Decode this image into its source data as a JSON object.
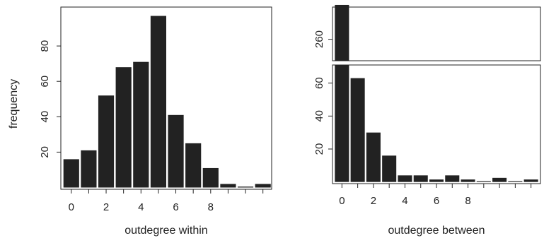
{
  "chart_data": [
    {
      "type": "bar",
      "x": [
        0,
        1,
        2,
        3,
        4,
        5,
        6,
        7,
        8,
        9,
        10,
        11
      ],
      "values": [
        16,
        21,
        52,
        68,
        71,
        97,
        41,
        25,
        11,
        2,
        0.5,
        2
      ],
      "xlabel": "outdegree within",
      "ylabel": "frequency",
      "xlim": [
        -0.6,
        11.5
      ],
      "ylim": [
        -1,
        102
      ],
      "x_tick_labels": [
        "0",
        "2",
        "4",
        "6",
        "8"
      ],
      "x_tick_values": [
        0,
        2,
        4,
        6,
        8
      ],
      "x_minor_ticks": [
        0,
        1,
        2,
        3,
        4,
        5,
        6,
        7,
        8,
        9,
        10,
        11
      ],
      "y_ticks": [
        20,
        40,
        60,
        80
      ],
      "bar_color": "#222222"
    },
    {
      "type": "bar",
      "broken_axis": true,
      "x": [
        0,
        1,
        2,
        3,
        4,
        5,
        6,
        7,
        8,
        9,
        10,
        11,
        12
      ],
      "values": [
        276,
        63,
        30,
        16,
        4,
        4,
        1.5,
        4,
        1.5,
        0.5,
        2.5,
        0.5,
        1.5
      ],
      "xlabel": "outdegree between",
      "xlim": [
        -0.6,
        12.6
      ],
      "upper_ylim": [
        250,
        275
      ],
      "lower_ylim": [
        -1,
        71
      ],
      "upper_y_ticks": [
        260
      ],
      "lower_y_ticks": [
        20,
        40,
        60
      ],
      "x_tick_labels": [
        "0",
        "2",
        "4",
        "6",
        "8"
      ],
      "x_tick_values": [
        0,
        2,
        4,
        6,
        8
      ],
      "x_minor_ticks": [
        0,
        1,
        2,
        3,
        4,
        5,
        6,
        7,
        8,
        9,
        10,
        11,
        12
      ],
      "bar_color": "#222222"
    }
  ]
}
